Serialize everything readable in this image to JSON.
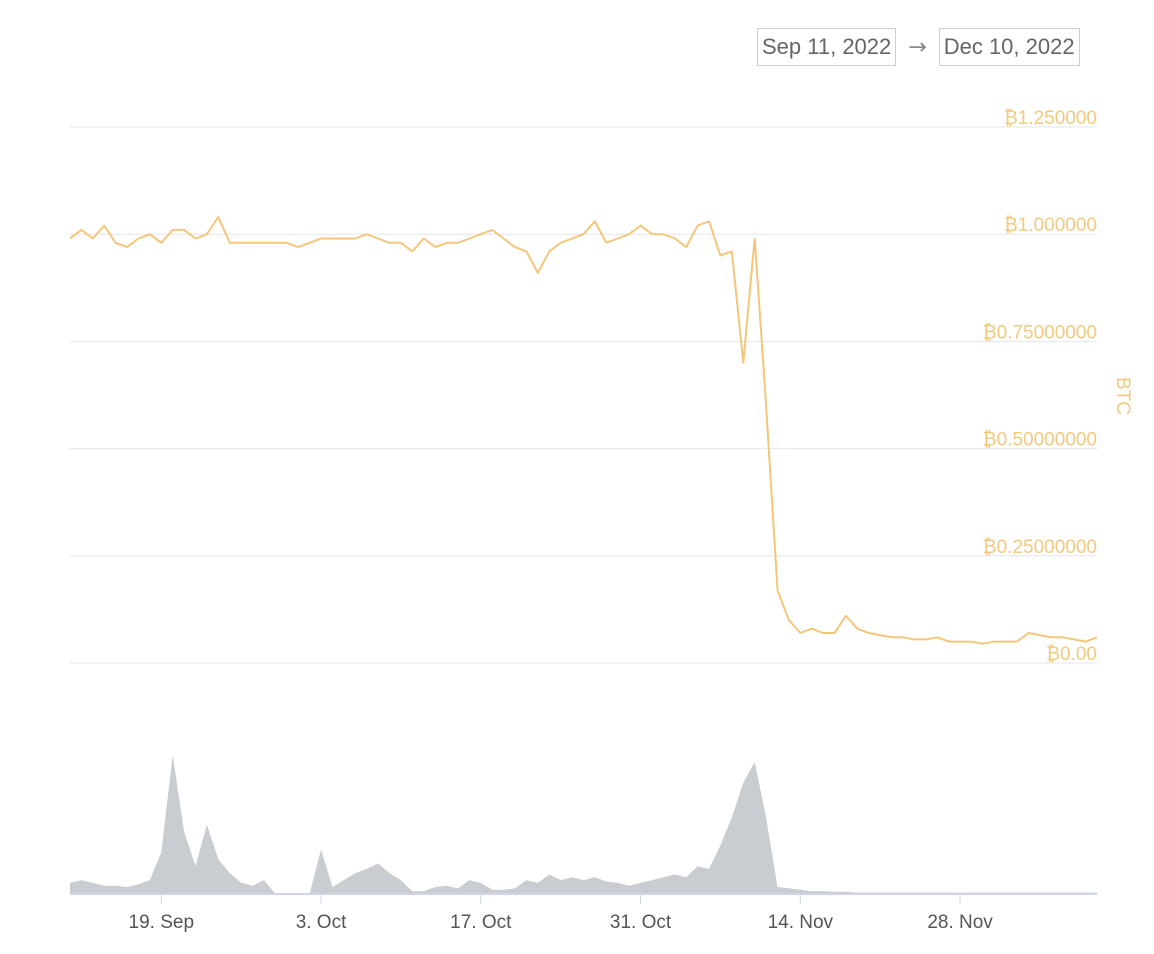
{
  "range_selector": {
    "from": "Sep 11, 2022",
    "to": "Dec 10, 2022",
    "arrow": "→"
  },
  "chart_data": {
    "type": "line",
    "x_range": [
      "2022-09-11",
      "2022-12-10"
    ],
    "ylabel": "BTC",
    "ylim": [
      0,
      1.25
    ],
    "y_ticks": [
      {
        "value": 1.25,
        "label": "₿1.250000"
      },
      {
        "value": 1.0,
        "label": "₿1.000000"
      },
      {
        "value": 0.75,
        "label": "₿0.75000000"
      },
      {
        "value": 0.5,
        "label": "₿0.50000000"
      },
      {
        "value": 0.25,
        "label": "₿0.25000000"
      },
      {
        "value": 0.0,
        "label": "₿0.00"
      }
    ],
    "x_ticks": [
      {
        "date": "2022-09-19",
        "label": "19. Sep"
      },
      {
        "date": "2022-10-03",
        "label": "3. Oct"
      },
      {
        "date": "2022-10-17",
        "label": "17. Oct"
      },
      {
        "date": "2022-10-31",
        "label": "31. Oct"
      },
      {
        "date": "2022-11-14",
        "label": "14. Nov"
      },
      {
        "date": "2022-11-28",
        "label": "28. Nov"
      }
    ],
    "grid": true,
    "colors": {
      "price": "#f5c67a",
      "volume": "#c9ccd1",
      "grid": "#e6e6e6"
    },
    "price_series": {
      "name": "",
      "points": [
        [
          "2022-09-11",
          0.99
        ],
        [
          "2022-09-12",
          1.01
        ],
        [
          "2022-09-13",
          0.99
        ],
        [
          "2022-09-14",
          1.02
        ],
        [
          "2022-09-15",
          0.98
        ],
        [
          "2022-09-16",
          0.97
        ],
        [
          "2022-09-17",
          0.99
        ],
        [
          "2022-09-18",
          1.0
        ],
        [
          "2022-09-19",
          0.98
        ],
        [
          "2022-09-20",
          1.01
        ],
        [
          "2022-09-21",
          1.01
        ],
        [
          "2022-09-22",
          0.99
        ],
        [
          "2022-09-23",
          1.0
        ],
        [
          "2022-09-24",
          1.04
        ],
        [
          "2022-09-25",
          0.98
        ],
        [
          "2022-09-26",
          0.98
        ],
        [
          "2022-09-27",
          0.98
        ],
        [
          "2022-09-28",
          0.98
        ],
        [
          "2022-09-29",
          0.98
        ],
        [
          "2022-09-30",
          0.98
        ],
        [
          "2022-10-01",
          0.97
        ],
        [
          "2022-10-02",
          0.98
        ],
        [
          "2022-10-03",
          0.99
        ],
        [
          "2022-10-04",
          0.99
        ],
        [
          "2022-10-05",
          0.99
        ],
        [
          "2022-10-06",
          0.99
        ],
        [
          "2022-10-07",
          1.0
        ],
        [
          "2022-10-08",
          0.99
        ],
        [
          "2022-10-09",
          0.98
        ],
        [
          "2022-10-10",
          0.98
        ],
        [
          "2022-10-11",
          0.96
        ],
        [
          "2022-10-12",
          0.99
        ],
        [
          "2022-10-13",
          0.97
        ],
        [
          "2022-10-14",
          0.98
        ],
        [
          "2022-10-15",
          0.98
        ],
        [
          "2022-10-16",
          0.99
        ],
        [
          "2022-10-17",
          1.0
        ],
        [
          "2022-10-18",
          1.01
        ],
        [
          "2022-10-19",
          0.99
        ],
        [
          "2022-10-20",
          0.97
        ],
        [
          "2022-10-21",
          0.96
        ],
        [
          "2022-10-22",
          0.91
        ],
        [
          "2022-10-23",
          0.96
        ],
        [
          "2022-10-24",
          0.98
        ],
        [
          "2022-10-25",
          0.99
        ],
        [
          "2022-10-26",
          1.0
        ],
        [
          "2022-10-27",
          1.03
        ],
        [
          "2022-10-28",
          0.98
        ],
        [
          "2022-10-29",
          0.99
        ],
        [
          "2022-10-30",
          1.0
        ],
        [
          "2022-10-31",
          1.02
        ],
        [
          "2022-11-01",
          1.0
        ],
        [
          "2022-11-02",
          1.0
        ],
        [
          "2022-11-03",
          0.99
        ],
        [
          "2022-11-04",
          0.97
        ],
        [
          "2022-11-05",
          1.02
        ],
        [
          "2022-11-06",
          1.03
        ],
        [
          "2022-11-07",
          0.95
        ],
        [
          "2022-11-08",
          0.96
        ],
        [
          "2022-11-09",
          0.7
        ],
        [
          "2022-11-10",
          0.99
        ],
        [
          "2022-11-11",
          0.6
        ],
        [
          "2022-11-12",
          0.17
        ],
        [
          "2022-11-13",
          0.1
        ],
        [
          "2022-11-14",
          0.07
        ],
        [
          "2022-11-15",
          0.08
        ],
        [
          "2022-11-16",
          0.07
        ],
        [
          "2022-11-17",
          0.07
        ],
        [
          "2022-11-18",
          0.11
        ],
        [
          "2022-11-19",
          0.08
        ],
        [
          "2022-11-20",
          0.07
        ],
        [
          "2022-11-21",
          0.065
        ],
        [
          "2022-11-22",
          0.06
        ],
        [
          "2022-11-23",
          0.06
        ],
        [
          "2022-11-24",
          0.055
        ],
        [
          "2022-11-25",
          0.055
        ],
        [
          "2022-11-26",
          0.06
        ],
        [
          "2022-11-27",
          0.05
        ],
        [
          "2022-11-28",
          0.05
        ],
        [
          "2022-11-29",
          0.05
        ],
        [
          "2022-11-30",
          0.045
        ],
        [
          "2022-12-01",
          0.05
        ],
        [
          "2022-12-02",
          0.05
        ],
        [
          "2022-12-03",
          0.05
        ],
        [
          "2022-12-04",
          0.07
        ],
        [
          "2022-12-05",
          0.065
        ],
        [
          "2022-12-06",
          0.06
        ],
        [
          "2022-12-07",
          0.06
        ],
        [
          "2022-12-08",
          0.055
        ],
        [
          "2022-12-09",
          0.05
        ],
        [
          "2022-12-10",
          0.06
        ]
      ]
    },
    "volume_series": {
      "name": "",
      "max": 1.0,
      "points": [
        [
          "2022-09-11",
          0.08
        ],
        [
          "2022-09-12",
          0.1
        ],
        [
          "2022-09-13",
          0.08
        ],
        [
          "2022-09-14",
          0.06
        ],
        [
          "2022-09-15",
          0.06
        ],
        [
          "2022-09-16",
          0.05
        ],
        [
          "2022-09-17",
          0.07
        ],
        [
          "2022-09-18",
          0.1
        ],
        [
          "2022-09-19",
          0.3
        ],
        [
          "2022-09-20",
          1.0
        ],
        [
          "2022-09-21",
          0.45
        ],
        [
          "2022-09-22",
          0.2
        ],
        [
          "2022-09-23",
          0.5
        ],
        [
          "2022-09-24",
          0.25
        ],
        [
          "2022-09-25",
          0.15
        ],
        [
          "2022-09-26",
          0.08
        ],
        [
          "2022-09-27",
          0.06
        ],
        [
          "2022-09-28",
          0.1
        ],
        [
          "2022-09-29",
          0.0
        ],
        [
          "2022-09-30",
          0.0
        ],
        [
          "2022-10-01",
          0.0
        ],
        [
          "2022-10-02",
          0.0
        ],
        [
          "2022-10-03",
          0.32
        ],
        [
          "2022-10-04",
          0.05
        ],
        [
          "2022-10-05",
          0.1
        ],
        [
          "2022-10-06",
          0.15
        ],
        [
          "2022-10-07",
          0.18
        ],
        [
          "2022-10-08",
          0.22
        ],
        [
          "2022-10-09",
          0.15
        ],
        [
          "2022-10-10",
          0.1
        ],
        [
          "2022-10-11",
          0.02
        ],
        [
          "2022-10-12",
          0.02
        ],
        [
          "2022-10-13",
          0.05
        ],
        [
          "2022-10-14",
          0.06
        ],
        [
          "2022-10-15",
          0.04
        ],
        [
          "2022-10-16",
          0.1
        ],
        [
          "2022-10-17",
          0.08
        ],
        [
          "2022-10-18",
          0.03
        ],
        [
          "2022-10-19",
          0.03
        ],
        [
          "2022-10-20",
          0.04
        ],
        [
          "2022-10-21",
          0.1
        ],
        [
          "2022-10-22",
          0.08
        ],
        [
          "2022-10-23",
          0.14
        ],
        [
          "2022-10-24",
          0.1
        ],
        [
          "2022-10-25",
          0.12
        ],
        [
          "2022-10-26",
          0.1
        ],
        [
          "2022-10-27",
          0.12
        ],
        [
          "2022-10-28",
          0.09
        ],
        [
          "2022-10-29",
          0.08
        ],
        [
          "2022-10-30",
          0.06
        ],
        [
          "2022-10-31",
          0.08
        ],
        [
          "2022-11-01",
          0.1
        ],
        [
          "2022-11-02",
          0.12
        ],
        [
          "2022-11-03",
          0.14
        ],
        [
          "2022-11-04",
          0.12
        ],
        [
          "2022-11-05",
          0.2
        ],
        [
          "2022-11-06",
          0.18
        ],
        [
          "2022-11-07",
          0.35
        ],
        [
          "2022-11-08",
          0.55
        ],
        [
          "2022-11-09",
          0.8
        ],
        [
          "2022-11-10",
          0.95
        ],
        [
          "2022-11-11",
          0.55
        ],
        [
          "2022-11-12",
          0.05
        ],
        [
          "2022-11-13",
          0.04
        ],
        [
          "2022-11-14",
          0.03
        ],
        [
          "2022-11-15",
          0.02
        ],
        [
          "2022-11-16",
          0.02
        ],
        [
          "2022-11-17",
          0.015
        ],
        [
          "2022-11-18",
          0.015
        ],
        [
          "2022-11-19",
          0.01
        ],
        [
          "2022-11-20",
          0.01
        ],
        [
          "2022-11-21",
          0.01
        ],
        [
          "2022-11-22",
          0.01
        ],
        [
          "2022-11-23",
          0.01
        ],
        [
          "2022-11-24",
          0.01
        ],
        [
          "2022-11-25",
          0.01
        ],
        [
          "2022-11-26",
          0.01
        ],
        [
          "2022-11-27",
          0.01
        ],
        [
          "2022-11-28",
          0.01
        ],
        [
          "2022-11-29",
          0.01
        ],
        [
          "2022-11-30",
          0.01
        ],
        [
          "2022-12-01",
          0.01
        ],
        [
          "2022-12-02",
          0.01
        ],
        [
          "2022-12-03",
          0.01
        ],
        [
          "2022-12-04",
          0.01
        ],
        [
          "2022-12-05",
          0.01
        ],
        [
          "2022-12-06",
          0.01
        ],
        [
          "2022-12-07",
          0.01
        ],
        [
          "2022-12-08",
          0.01
        ],
        [
          "2022-12-09",
          0.01
        ],
        [
          "2022-12-10",
          0.01
        ]
      ]
    }
  }
}
